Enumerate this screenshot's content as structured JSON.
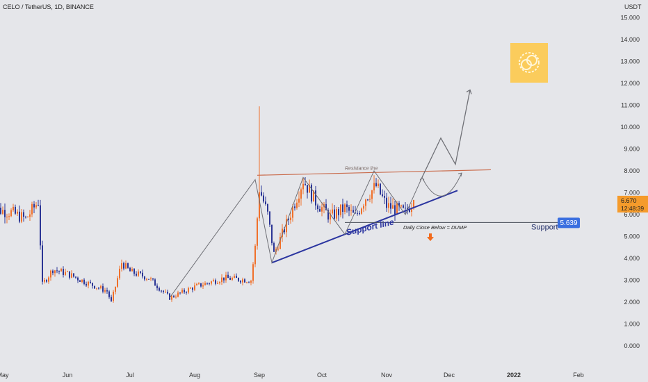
{
  "header": {
    "symbol_title": "CELO / TetherUS, 1D, BINANCE"
  },
  "price_axis": {
    "currency": "USDT",
    "ticks": [
      "15.000",
      "14.000",
      "13.000",
      "12.000",
      "11.000",
      "10.000",
      "9.000",
      "8.000",
      "7.000",
      "6.000",
      "5.000",
      "4.000",
      "3.000",
      "2.000",
      "1.000",
      "0.000"
    ],
    "tick_values": [
      15,
      14,
      13,
      12,
      11,
      10,
      9,
      8,
      7,
      6,
      5,
      4,
      3,
      2,
      1,
      0
    ],
    "current_price": "6.670",
    "countdown": "12:48:39",
    "current_value": 6.67
  },
  "time_axis": {
    "labels": [
      "May",
      "Jun",
      "Jul",
      "Aug",
      "Sep",
      "Oct",
      "Nov",
      "Dec",
      "2022",
      "Feb"
    ]
  },
  "annotations": {
    "resistance_label": "Resistance line",
    "support_line_label": "Support line",
    "daily_close_note": "Daily Close Below = DUMP",
    "support_label": "Support",
    "support_value": "5.639",
    "support_level": 5.639
  },
  "colors": {
    "background": "#e5e6ea",
    "up_candle": "#f0702a",
    "down_candle": "#2b3595",
    "support_line": "#2b35a0",
    "resistance_line": "#c96a4a",
    "projection": "#6f7076",
    "price_badge": "#f59b2b",
    "support_badge": "#3a6fe0",
    "logo_bg": "#fbcc5c",
    "arrow": "#f26a1b"
  },
  "logo": {
    "icon": "celo-coin-icon"
  },
  "chart_data": {
    "type": "candlestick",
    "ylim": [
      0,
      15
    ],
    "price_path": [
      {
        "date": "2021-04-25",
        "price": 6.3
      },
      {
        "date": "2021-05-05",
        "price": 6.1
      },
      {
        "date": "2021-05-12",
        "price": 5.8
      },
      {
        "date": "2021-05-18",
        "price": 6.6
      },
      {
        "date": "2021-05-20",
        "price": 2.8
      },
      {
        "date": "2021-05-25",
        "price": 3.5
      },
      {
        "date": "2021-06-01",
        "price": 3.3
      },
      {
        "date": "2021-06-10",
        "price": 2.9
      },
      {
        "date": "2021-06-20",
        "price": 2.5
      },
      {
        "date": "2021-06-22",
        "price": 2.0
      },
      {
        "date": "2021-06-27",
        "price": 3.8
      },
      {
        "date": "2021-07-01",
        "price": 3.4
      },
      {
        "date": "2021-07-10",
        "price": 3.1
      },
      {
        "date": "2021-07-20",
        "price": 2.2
      },
      {
        "date": "2021-08-01",
        "price": 2.7
      },
      {
        "date": "2021-08-15",
        "price": 3.1
      },
      {
        "date": "2021-08-28",
        "price": 3.0
      },
      {
        "date": "2021-08-30",
        "price": 4.5
      },
      {
        "date": "2021-09-01",
        "price": 7.2
      },
      {
        "date": "2021-09-05",
        "price": 6.0
      },
      {
        "date": "2021-09-08",
        "price": 4.2
      },
      {
        "date": "2021-09-15",
        "price": 5.8
      },
      {
        "date": "2021-09-22",
        "price": 7.6
      },
      {
        "date": "2021-09-28",
        "price": 6.6
      },
      {
        "date": "2021-10-05",
        "price": 5.9
      },
      {
        "date": "2021-10-12",
        "price": 6.3
      },
      {
        "date": "2021-10-17",
        "price": 5.9
      },
      {
        "date": "2021-10-22",
        "price": 6.8
      },
      {
        "date": "2021-10-27",
        "price": 7.3
      },
      {
        "date": "2021-11-01",
        "price": 6.4
      },
      {
        "date": "2021-11-10",
        "price": 6.1
      },
      {
        "date": "2021-11-14",
        "price": 6.67
      }
    ],
    "pattern": {
      "resistance": [
        {
          "date": "2021-08-31",
          "price": 7.8
        },
        {
          "date": "2021-12-21",
          "price": 8.05
        }
      ],
      "support": [
        {
          "date": "2021-09-07",
          "price": 3.8
        },
        {
          "date": "2021-12-05",
          "price": 7.1
        }
      ],
      "horizontal_support": {
        "from": "2021-10-12",
        "to": "2022-01-28",
        "price": 5.639
      }
    }
  }
}
